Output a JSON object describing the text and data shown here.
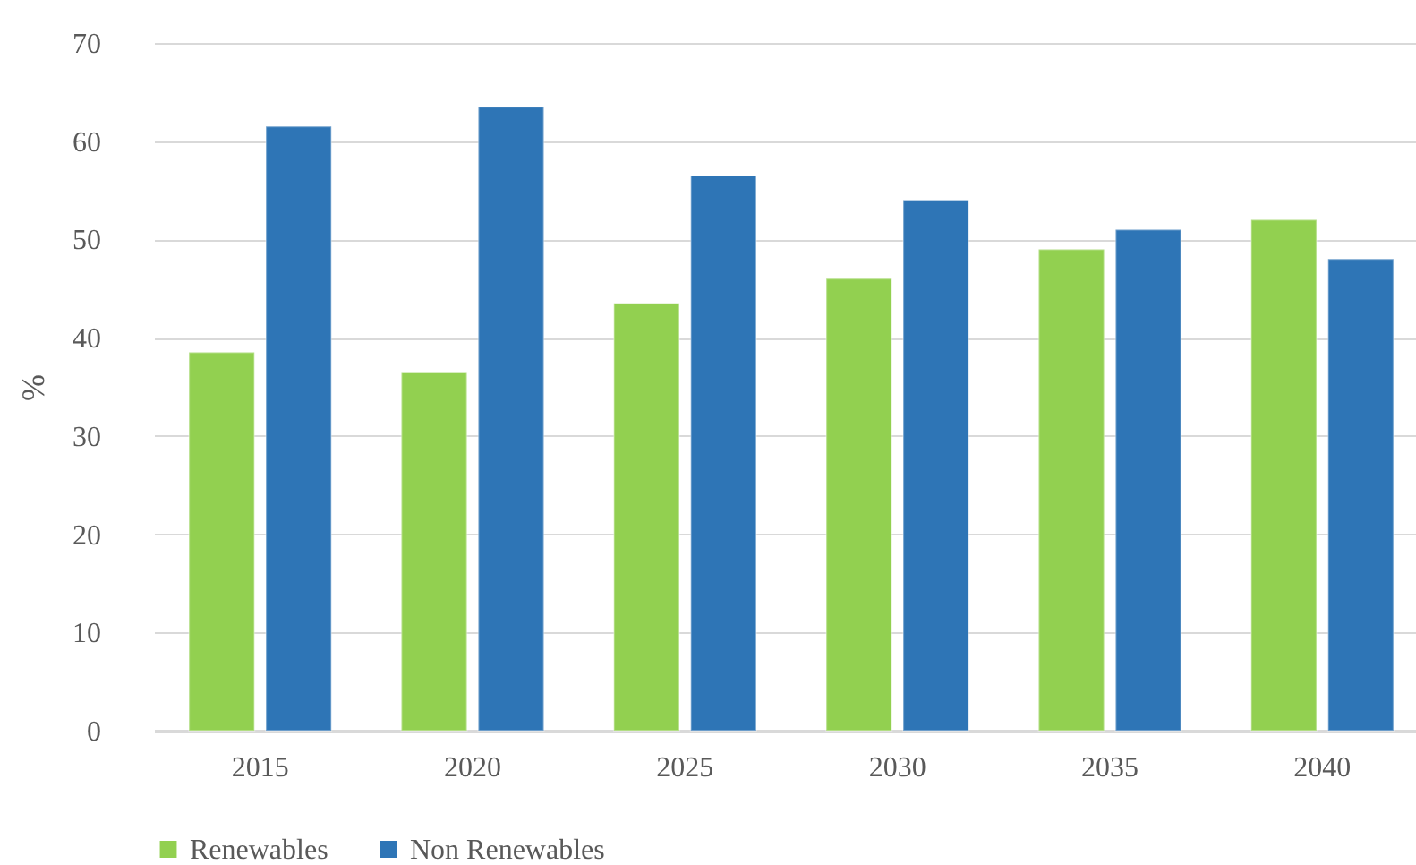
{
  "chart_data": {
    "type": "bar",
    "ylabel": "%",
    "categories": [
      "2015",
      "2020",
      "2025",
      "2030",
      "2035",
      "2040"
    ],
    "series": [
      {
        "name": "Renewables",
        "color": "#92d050",
        "values": [
          38.5,
          36.5,
          43.5,
          46,
          49,
          52
        ]
      },
      {
        "name": "Non Renewables",
        "color": "#2e75b6",
        "values": [
          61.5,
          63.5,
          56.5,
          54,
          51,
          48
        ]
      }
    ],
    "ylim": [
      0,
      70
    ],
    "yticks": [
      0,
      10,
      20,
      30,
      40,
      50,
      60,
      70
    ],
    "grid": "y",
    "legend": "bottom"
  }
}
